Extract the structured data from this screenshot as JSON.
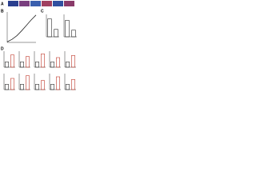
{
  "panels": [
    {
      "label": "A"
    },
    {
      "label": "B"
    },
    {
      "label": "C"
    },
    {
      "label": "D"
    }
  ],
  "chart_data": [
    {
      "type": "line",
      "x": [
        0,
        1,
        2,
        3,
        4,
        5,
        6
      ],
      "xlim": [
        0,
        6
      ],
      "ylim": [
        0,
        5
      ],
      "series": [
        {
          "color": "#222222",
          "values": [
            0.1,
            0.5,
            1.1,
            1.9,
            2.8,
            3.7,
            4.5
          ]
        }
      ]
    },
    {
      "type": "bar",
      "categories": [
        null,
        null
      ],
      "ylim": [
        0,
        3
      ],
      "series": [
        {
          "color": "#2b2b2b",
          "values": [
            2.4,
            1.0
          ]
        }
      ]
    },
    {
      "type": "bar",
      "categories": [
        null,
        null
      ],
      "ylim": [
        0,
        3
      ],
      "series": [
        {
          "color": "#2b2b2b",
          "values": [
            2.2,
            0.9
          ]
        }
      ]
    },
    {
      "type": "bar",
      "categories": [
        null,
        null
      ],
      "ylim": [
        0,
        3
      ],
      "series": [
        {
          "color": "#c0392b",
          "values": [
            1.0,
            2.3
          ]
        }
      ]
    },
    {
      "type": "bar",
      "categories": [
        null,
        null
      ],
      "ylim": [
        0,
        3
      ],
      "series": [
        {
          "color": "#c0392b",
          "values": [
            1.0,
            2.0
          ]
        }
      ]
    },
    {
      "type": "bar",
      "categories": [
        null,
        null
      ],
      "ylim": [
        0,
        3
      ],
      "series": [
        {
          "color": "#c0392b",
          "values": [
            1.0,
            2.5
          ]
        }
      ]
    },
    {
      "type": "bar",
      "categories": [
        null,
        null
      ],
      "ylim": [
        0,
        3
      ],
      "series": [
        {
          "color": "#c0392b",
          "values": [
            1.0,
            1.8
          ]
        }
      ]
    },
    {
      "type": "bar",
      "categories": [
        null,
        null
      ],
      "ylim": [
        0,
        3
      ],
      "series": [
        {
          "color": "#c0392b",
          "values": [
            1.0,
            2.2
          ]
        }
      ]
    },
    {
      "type": "bar",
      "categories": [
        null,
        null
      ],
      "ylim": [
        0,
        3
      ],
      "series": [
        {
          "color": "#c0392b",
          "values": [
            1.0,
            2.1
          ]
        }
      ]
    },
    {
      "type": "bar",
      "categories": [
        null,
        null
      ],
      "ylim": [
        0,
        3
      ],
      "series": [
        {
          "color": "#c0392b",
          "values": [
            1.0,
            2.6
          ]
        }
      ]
    },
    {
      "type": "bar",
      "categories": [
        null,
        null
      ],
      "ylim": [
        0,
        3
      ],
      "series": [
        {
          "color": "#c0392b",
          "values": [
            1.0,
            1.7
          ]
        }
      ]
    },
    {
      "type": "bar",
      "categories": [
        null,
        null
      ],
      "ylim": [
        0,
        3
      ],
      "series": [
        {
          "color": "#c0392b",
          "values": [
            1.0,
            2.4
          ]
        }
      ]
    },
    {
      "type": "bar",
      "categories": [
        null,
        null
      ],
      "ylim": [
        0,
        3
      ],
      "series": [
        {
          "color": "#c0392b",
          "values": [
            1.0,
            1.9
          ]
        }
      ]
    }
  ]
}
